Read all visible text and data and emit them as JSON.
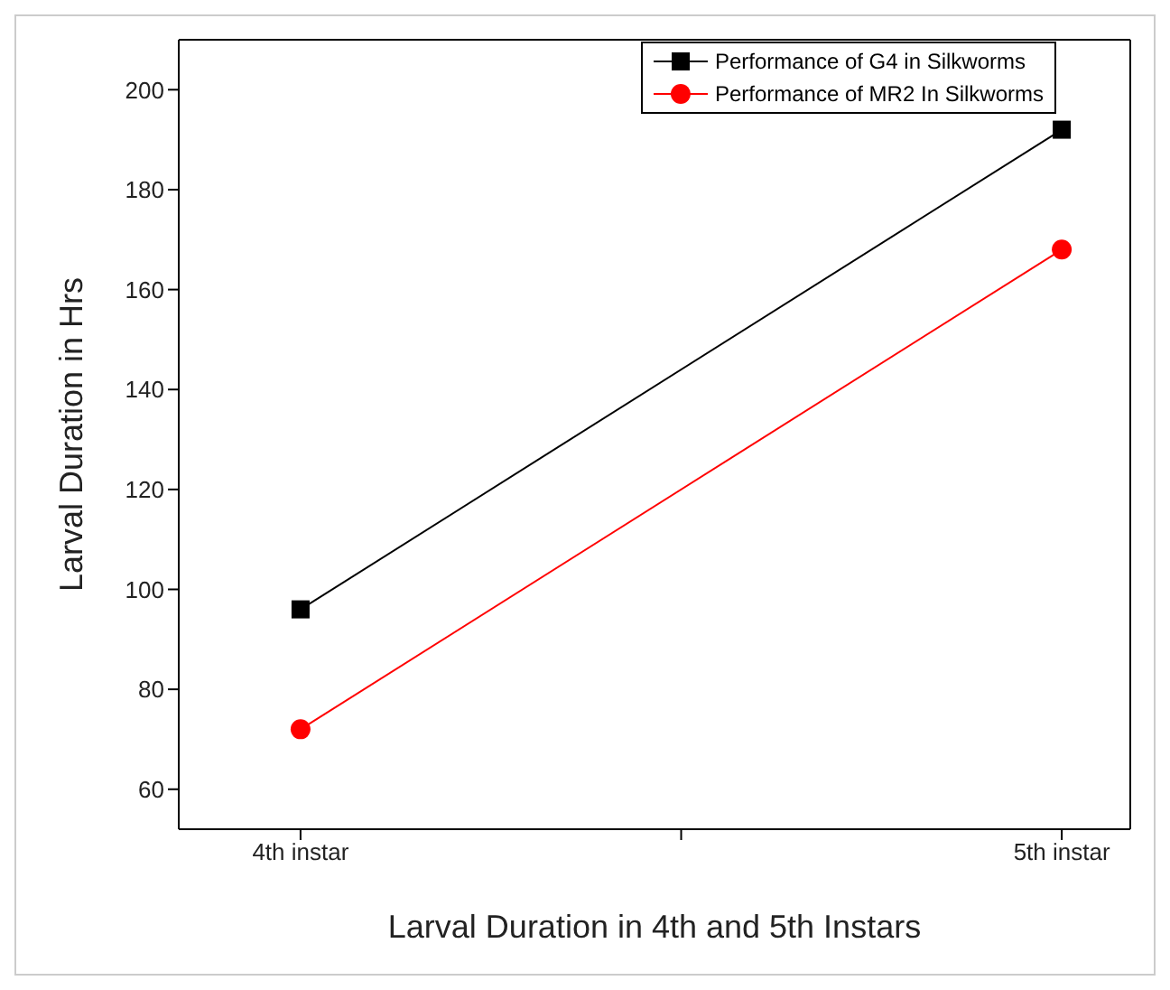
{
  "chart_data": {
    "type": "line",
    "xlabel": "Larval Duration in 4th and 5th Instars",
    "ylabel": "Larval Duration in Hrs",
    "categories": [
      "4th instar",
      "5th instar"
    ],
    "ylim": [
      52,
      210
    ],
    "yticks": [
      60,
      80,
      100,
      120,
      140,
      160,
      180,
      200
    ],
    "series": [
      {
        "name": "Performance of G4 in Silkworms",
        "color": "#000000",
        "values": [
          96,
          192
        ],
        "marker": "square"
      },
      {
        "name": "Performance of MR2 In Silkworms",
        "color": "#ff0000",
        "values": [
          72,
          168
        ],
        "marker": "circle"
      }
    ],
    "grid": false,
    "legend": "top right",
    "line_style": "solid"
  }
}
